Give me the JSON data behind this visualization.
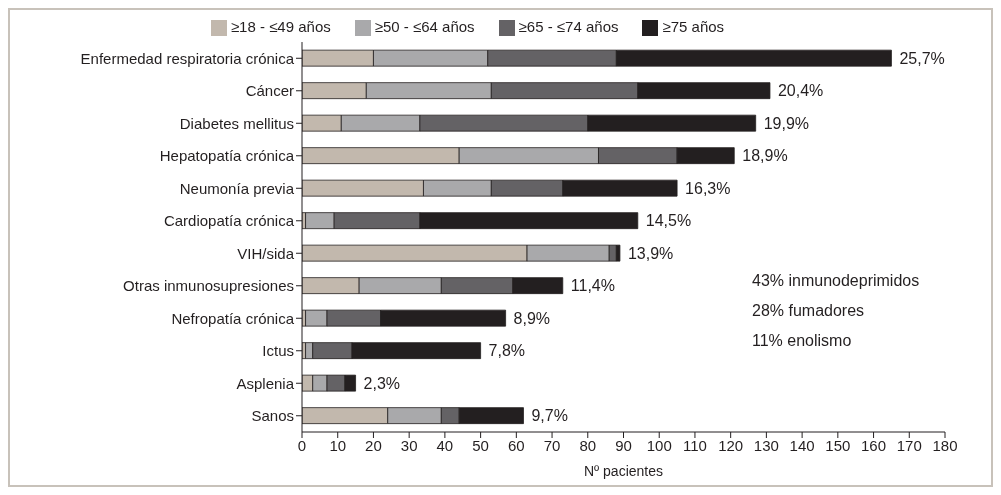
{
  "chart_data": {
    "type": "bar",
    "orientation": "horizontal",
    "stacked": true,
    "xlabel": "Nº pacientes",
    "categories": [
      "Enfermedad respiratoria crónica",
      "Cáncer",
      "Diabetes mellitus",
      "Hepatopatía crónica",
      "Neumonía previa",
      "Cardiopatía crónica",
      "VIH/sida",
      "Otras inmunosupresiones",
      "Nefropatía crónica",
      "Ictus",
      "Asplenia",
      "Sanos"
    ],
    "series": [
      {
        "name": "≥18 - ≤49 años",
        "color": "#c2b8ad",
        "values": [
          20,
          18,
          11,
          44,
          34,
          1,
          63,
          16,
          1,
          1,
          3,
          24
        ]
      },
      {
        "name": "≥50 - ≤64 años",
        "color": "#a9a9ab",
        "values": [
          32,
          35,
          22,
          39,
          19,
          8,
          23,
          23,
          6,
          2,
          4,
          15
        ]
      },
      {
        "name": "≥65 - ≤74 años",
        "color": "#646265",
        "values": [
          36,
          41,
          47,
          22,
          20,
          24,
          2,
          20,
          15,
          11,
          5,
          5
        ]
      },
      {
        "name": "≥75 años",
        "color": "#231f20",
        "values": [
          77,
          37,
          47,
          16,
          32,
          61,
          1,
          14,
          35,
          36,
          3,
          18
        ]
      }
    ],
    "xlim": [
      0,
      180
    ],
    "xticks": [
      0,
      10,
      20,
      30,
      40,
      50,
      60,
      70,
      80,
      90,
      100,
      110,
      120,
      130,
      140,
      150,
      160,
      170,
      180
    ],
    "grid": false,
    "legend": "top",
    "annotations": [
      {
        "text": "25,7%",
        "x": 165,
        "y": "Enfermedad respiratoria crónica"
      },
      {
        "text": "20,4%",
        "x": 131,
        "y": "Cáncer"
      },
      {
        "text": "19,9%",
        "x": 127,
        "y": "Diabetes mellitus"
      },
      {
        "text": "18,9%",
        "x": 121,
        "y": "Hepatopatía crónica"
      },
      {
        "text": "16,3%",
        "x": 105,
        "y": "Neumonía previa"
      },
      {
        "text": "14,5%",
        "x": 94,
        "y": "Cardiopatía crónica"
      },
      {
        "text": "13,9%",
        "x": 89,
        "y": "VIH/sida"
      },
      {
        "text": "11,4%",
        "x": 73,
        "y": "Otras inmunosupresiones"
      },
      {
        "text": "8,9%",
        "x": 57,
        "y": "Nefropatía crónica"
      },
      {
        "text": "7,8%",
        "x": 50,
        "y": "Ictus"
      },
      {
        "text": "2,3%",
        "x": 15,
        "y": "Asplenia"
      },
      {
        "text": "9,7%",
        "x": 62,
        "y": "Sanos"
      },
      "43% inmunodeprimidos",
      "28% fumadores",
      "11% enolismo"
    ]
  }
}
